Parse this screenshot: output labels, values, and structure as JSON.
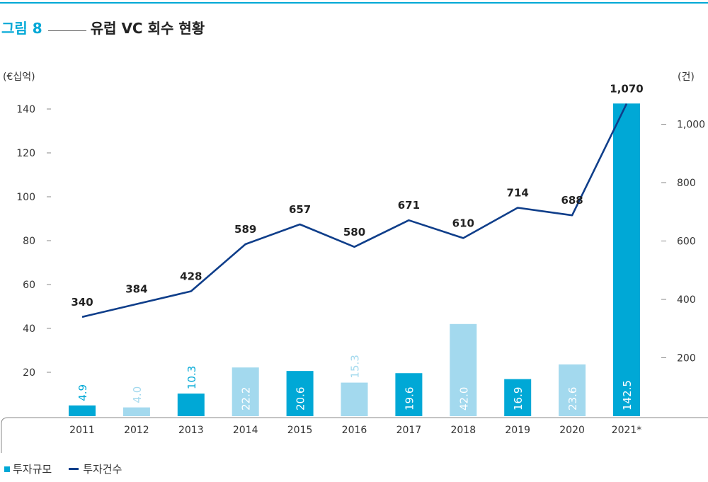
{
  "figure": {
    "number": "그림 8",
    "title": "유럽 VC 회수 현황",
    "left_unit": "(€십억)",
    "right_unit": "(건)"
  },
  "colors": {
    "accent": "#00a8d6",
    "bar_dark": "#00a8d6",
    "bar_light": "#a3d9ee",
    "line": "#0f3e8a"
  },
  "chart_data": {
    "type": "bar",
    "categories": [
      "2011",
      "2012",
      "2013",
      "2014",
      "2015",
      "2016",
      "2017",
      "2018",
      "2019",
      "2020",
      "2021*"
    ],
    "series": [
      {
        "name": "투자규모",
        "type": "bar",
        "axis": "left",
        "values": [
          4.9,
          4.0,
          10.3,
          22.2,
          20.6,
          15.3,
          19.6,
          42.0,
          16.9,
          23.6,
          142.5
        ],
        "labels": [
          "4.9",
          "4.0",
          "10.3",
          "22.2",
          "20.6",
          "15.3",
          "19.6",
          "42.0",
          "16.9",
          "23.6",
          "142.5"
        ],
        "shade": [
          "dark",
          "light",
          "dark",
          "light",
          "dark",
          "light",
          "dark",
          "light",
          "dark",
          "light",
          "dark"
        ]
      },
      {
        "name": "투자건수",
        "type": "line",
        "axis": "right",
        "values": [
          340,
          384,
          428,
          589,
          657,
          580,
          671,
          610,
          714,
          688,
          1070
        ],
        "labels": [
          "340",
          "384",
          "428",
          "589",
          "657",
          "580",
          "671",
          "610",
          "714",
          "688",
          "1,070"
        ]
      }
    ],
    "y_left": {
      "range": [
        0,
        140
      ],
      "ticks": [
        "20",
        "40",
        "60",
        "80",
        "100",
        "120",
        "140"
      ]
    },
    "y_right": {
      "range": [
        0,
        1000
      ],
      "ticks": [
        "200",
        "400",
        "600",
        "800",
        "1,000"
      ]
    },
    "legend_position": "bottom-left",
    "grid": false
  },
  "legend": {
    "items": [
      "투자규모",
      "투자건수"
    ]
  }
}
